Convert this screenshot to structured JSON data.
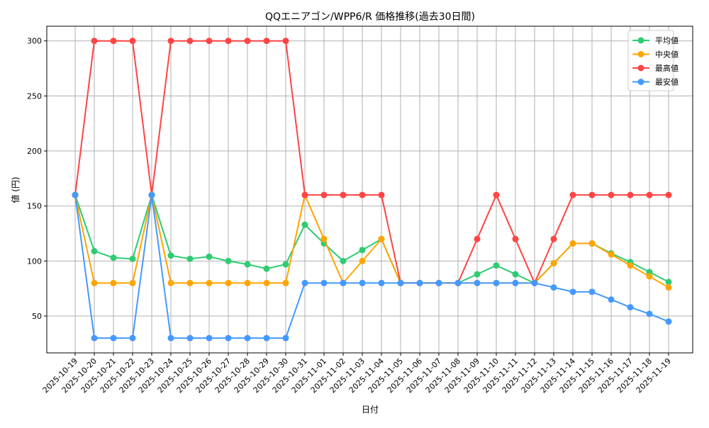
{
  "chart_data": {
    "type": "line",
    "title": "QQエニアゴン/WPP6/R 価格推移(過去30日間)",
    "xlabel": "日付",
    "ylabel": "値 (円)",
    "ylim": [
      15,
      313
    ],
    "yticks": [
      50,
      100,
      150,
      200,
      250,
      300
    ],
    "grid": true,
    "legend_position": "top-right",
    "x": [
      "2025-10-19",
      "2025-10-20",
      "2025-10-21",
      "2025-10-22",
      "2025-10-23",
      "2025-10-24",
      "2025-10-25",
      "2025-10-26",
      "2025-10-27",
      "2025-10-28",
      "2025-10-29",
      "2025-10-30",
      "2025-10-31",
      "2025-11-01",
      "2025-11-02",
      "2025-11-03",
      "2025-11-04",
      "2025-11-05",
      "2025-11-06",
      "2025-11-07",
      "2025-11-08",
      "2025-11-09",
      "2025-11-10",
      "2025-11-11",
      "2025-11-12",
      "2025-11-13",
      "2025-11-14",
      "2025-11-15",
      "2025-11-16",
      "2025-11-17",
      "2025-11-18",
      "2025-11-19"
    ],
    "series": [
      {
        "name": "平均値",
        "color": "#2ecc71",
        "values": [
          160,
          109,
          103,
          102,
          160,
          105,
          102,
          104,
          100,
          97,
          93,
          97,
          133,
          116,
          100,
          110,
          120,
          80,
          80,
          80,
          80,
          88,
          96,
          88,
          80,
          98,
          116,
          116,
          107,
          99,
          90,
          81
        ]
      },
      {
        "name": "中央値",
        "color": "#ffa500",
        "values": [
          160,
          80,
          80,
          80,
          160,
          80,
          80,
          80,
          80,
          80,
          80,
          80,
          160,
          120,
          80,
          100,
          120,
          80,
          80,
          80,
          80,
          80,
          80,
          80,
          80,
          98,
          116,
          116,
          106,
          96,
          86,
          76
        ]
      },
      {
        "name": "最高値",
        "color": "#ff4444",
        "values": [
          160,
          300,
          300,
          300,
          160,
          300,
          300,
          300,
          300,
          300,
          300,
          300,
          160,
          160,
          160,
          160,
          160,
          80,
          80,
          80,
          80,
          120,
          160,
          120,
          80,
          120,
          160,
          160,
          160,
          160,
          160,
          160
        ]
      },
      {
        "name": "最安値",
        "color": "#4499ff",
        "values": [
          160,
          30,
          30,
          30,
          160,
          30,
          30,
          30,
          30,
          30,
          30,
          30,
          80,
          80,
          80,
          80,
          80,
          80,
          80,
          80,
          80,
          80,
          80,
          80,
          80,
          76,
          72,
          72,
          65,
          58,
          52,
          45
        ]
      }
    ]
  }
}
